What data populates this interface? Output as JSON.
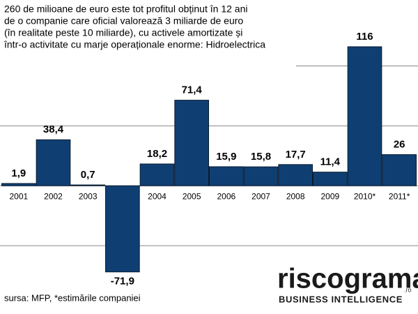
{
  "chart_data": {
    "type": "bar",
    "title": [
      "260 de milioane de euro este tot profitul obținut în 12 ani",
      "de o companie care oficial valorează 3 miliarde de euro",
      "(în realitate peste 10 miliarde), cu activele amortizate și",
      "într-o activitate cu marje operaționale enorme: Hidroelectrica"
    ],
    "categories": [
      "2001",
      "2002",
      "2003",
      null,
      "2004",
      "2005",
      "2006",
      "2007",
      "2008",
      "2009",
      "2010*",
      "2011*"
    ],
    "values": [
      1.9,
      38.4,
      0.7,
      -71.9,
      18.2,
      71.4,
      15.9,
      15.8,
      17.7,
      11.4,
      116,
      26
    ],
    "value_labels": [
      "1,9",
      "38,4",
      "0,7",
      "-71,9",
      "18,2",
      "71,4",
      "15,9",
      "15,8",
      "17,7",
      "11,4",
      "116",
      "26"
    ],
    "color": "#0f3f72",
    "ylim": [
      -107,
      155
    ],
    "yticks": [
      -50,
      0,
      50,
      100
    ],
    "grid": true,
    "source": "sursa: MFP, *estimările companiei",
    "logo": "riscograma",
    "logo_domain": ".ro",
    "tagline": "BUSINESS INTELLIGENCE"
  }
}
